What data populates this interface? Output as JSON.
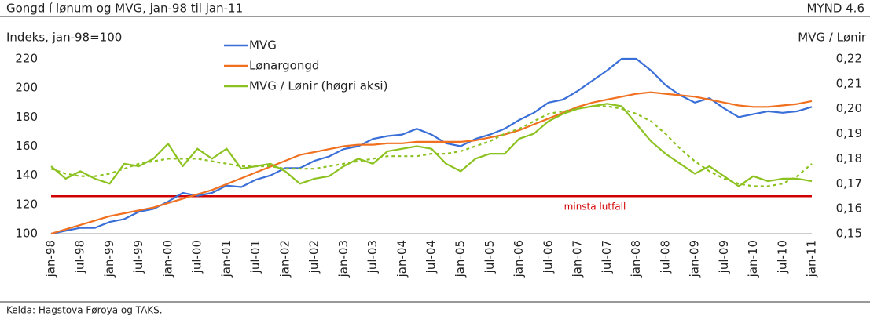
{
  "chart_data": {
    "type": "line",
    "title": "Gongd í lønum og MVG, jan-98 til jan-11",
    "figure_label": "MYND 4.6",
    "y_label": "Indeks, jan-98=100",
    "y2_label": "MVG / Lønir",
    "source": "Kelda: Hagstova Føroya og TAKS.",
    "categories": [
      "jan-98",
      null,
      "jul-98",
      null,
      "jan-99",
      null,
      "jul-99",
      null,
      "jan-00",
      null,
      "jul-00",
      null,
      "jan-01",
      null,
      "jul-01",
      null,
      "jan-02",
      null,
      "jul-02",
      null,
      "jan-03",
      null,
      "jul-03",
      null,
      "jan-04",
      null,
      "jul-04",
      null,
      "jan-05",
      null,
      "jul-05",
      null,
      "jan-06",
      null,
      "jul-06",
      null,
      "jan-07",
      null,
      "jul-07",
      null,
      "jan-08",
      null,
      "jul-08",
      null,
      "jan-09",
      null,
      "jul-09",
      null,
      "jan-10",
      null,
      "jul-10",
      null,
      "jan-11"
    ],
    "series": [
      {
        "name": "MVG",
        "color": "#3a6fd8",
        "values": [
          100,
          102,
          104,
          104,
          108,
          110,
          115,
          117,
          122,
          128,
          126,
          128,
          133,
          132,
          137,
          140,
          145,
          145,
          150,
          153,
          158,
          160,
          165,
          167,
          168,
          172,
          168,
          162,
          160,
          165,
          168,
          172,
          178,
          183,
          190,
          192,
          198,
          205,
          212,
          220,
          220,
          212,
          202,
          195,
          190,
          193,
          186,
          180,
          182,
          184,
          183,
          184,
          187
        ]
      },
      {
        "name": "Lønargongd",
        "color": "#f07020",
        "values": [
          100,
          103,
          106,
          109,
          112,
          114,
          116,
          118,
          121,
          124,
          127,
          130,
          134,
          138,
          142,
          146,
          150,
          154,
          156,
          158,
          160,
          161,
          161,
          162,
          162,
          163,
          163,
          163,
          163,
          164,
          166,
          168,
          171,
          175,
          179,
          183,
          187,
          190,
          192,
          194,
          196,
          197,
          196,
          195,
          194,
          192,
          190,
          188,
          187,
          187,
          188,
          189,
          191
        ]
      },
      {
        "name": "MVG / Lønir (høgri aksi)",
        "color": "#8cc220",
        "axis": "y2",
        "values": [
          0.177,
          0.172,
          0.175,
          0.172,
          0.17,
          0.178,
          0.177,
          0.18,
          0.186,
          0.177,
          0.184,
          0.18,
          0.184,
          0.176,
          0.177,
          0.178,
          0.175,
          0.17,
          0.172,
          0.173,
          0.177,
          0.18,
          0.178,
          0.183,
          0.184,
          0.185,
          0.184,
          0.178,
          0.175,
          0.18,
          0.182,
          0.182,
          0.188,
          0.19,
          0.195,
          0.198,
          0.2,
          0.201,
          0.202,
          0.201,
          0.194,
          0.187,
          0.182,
          0.178,
          0.174,
          0.177,
          0.173,
          0.169,
          0.173,
          0.171,
          0.172,
          0.172,
          0.171
        ]
      },
      {
        "color": "#8cc220",
        "axis": "y2",
        "style": "dotted",
        "values": [
          0.176,
          0.174,
          0.173,
          0.173,
          0.174,
          0.176,
          0.178,
          0.179,
          0.18,
          0.18,
          0.18,
          0.179,
          0.178,
          0.177,
          0.177,
          0.177,
          0.176,
          0.176,
          0.176,
          0.177,
          0.178,
          0.179,
          0.18,
          0.181,
          0.181,
          0.181,
          0.182,
          0.182,
          0.183,
          0.185,
          0.187,
          0.19,
          0.192,
          0.195,
          0.198,
          0.199,
          0.2,
          0.201,
          0.201,
          0.2,
          0.198,
          0.195,
          0.19,
          0.184,
          0.179,
          0.175,
          0.172,
          0.17,
          0.169,
          0.169,
          0.17,
          0.173,
          0.178
        ]
      }
    ],
    "reference_line": {
      "text": "minsta lutfall",
      "value": 0.165,
      "axis": "y2",
      "color": "#d00000"
    },
    "ylim": [
      100,
      220
    ],
    "yticks": [
      100,
      120,
      140,
      160,
      180,
      200,
      220
    ],
    "y2lim": [
      0.15,
      0.22
    ],
    "y2ticks": [
      {
        "value": 0.15,
        "label": "0,15"
      },
      {
        "value": 0.16,
        "label": "0,16"
      },
      {
        "value": 0.17,
        "label": "0,17"
      },
      {
        "value": 0.18,
        "label": "0,18"
      },
      {
        "value": 0.19,
        "label": "0,19"
      },
      {
        "value": 0.2,
        "label": "0,20"
      },
      {
        "value": 0.21,
        "label": "0,21"
      },
      {
        "value": 0.22,
        "label": "0,22"
      }
    ],
    "grid": false
  }
}
